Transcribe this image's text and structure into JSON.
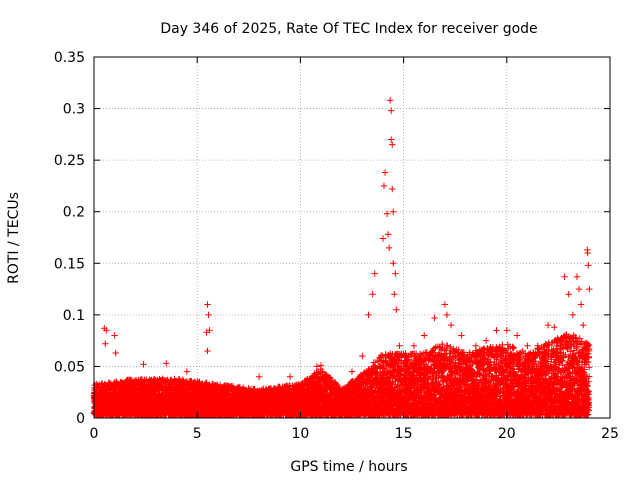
{
  "chart_data": {
    "type": "scatter",
    "title": "Day 346 of 2025, Rate Of TEC Index for receiver gode",
    "xlabel": "GPS time / hours",
    "ylabel": "ROTI / TECUs",
    "xlim": [
      0,
      25
    ],
    "ylim": [
      0,
      0.35
    ],
    "xticks": [
      0,
      5,
      10,
      15,
      20,
      25
    ],
    "xtick_labels": [
      "0",
      "5",
      "10",
      "15",
      "20",
      "25"
    ],
    "yticks": [
      0,
      0.05,
      0.1,
      0.15,
      0.2,
      0.25,
      0.3,
      0.35
    ],
    "ytick_labels": [
      "0",
      "0.05",
      "0.1",
      "0.15",
      "0.2",
      "0.25",
      "0.3",
      "0.35"
    ],
    "grid": true,
    "marker": "+",
    "series": [
      {
        "name": "ROTI",
        "color": "#ff0000",
        "baseline_profile": {
          "hours": [
            0,
            2,
            4,
            6,
            8,
            10,
            11,
            12,
            13,
            14,
            15,
            16,
            17,
            18,
            19,
            20,
            21,
            22,
            23,
            24
          ],
          "max_typical": [
            0.03,
            0.035,
            0.035,
            0.03,
            0.025,
            0.03,
            0.045,
            0.025,
            0.04,
            0.06,
            0.06,
            0.06,
            0.07,
            0.06,
            0.065,
            0.07,
            0.06,
            0.07,
            0.08,
            0.07
          ]
        },
        "peaks": [
          {
            "x": 0.5,
            "y": 0.087
          },
          {
            "x": 0.6,
            "y": 0.085
          },
          {
            "x": 0.55,
            "y": 0.072
          },
          {
            "x": 1.0,
            "y": 0.08
          },
          {
            "x": 1.05,
            "y": 0.063
          },
          {
            "x": 2.4,
            "y": 0.052
          },
          {
            "x": 3.5,
            "y": 0.053
          },
          {
            "x": 4.5,
            "y": 0.045
          },
          {
            "x": 5.5,
            "y": 0.11
          },
          {
            "x": 5.55,
            "y": 0.1
          },
          {
            "x": 5.6,
            "y": 0.085
          },
          {
            "x": 5.45,
            "y": 0.083
          },
          {
            "x": 5.5,
            "y": 0.065
          },
          {
            "x": 8.0,
            "y": 0.04
          },
          {
            "x": 9.5,
            "y": 0.04
          },
          {
            "x": 10.8,
            "y": 0.05
          },
          {
            "x": 11.0,
            "y": 0.051
          },
          {
            "x": 12.5,
            "y": 0.045
          },
          {
            "x": 13.0,
            "y": 0.06
          },
          {
            "x": 13.3,
            "y": 0.1
          },
          {
            "x": 13.5,
            "y": 0.12
          },
          {
            "x": 13.6,
            "y": 0.14
          },
          {
            "x": 14.0,
            "y": 0.174
          },
          {
            "x": 14.05,
            "y": 0.225
          },
          {
            "x": 14.1,
            "y": 0.238
          },
          {
            "x": 14.2,
            "y": 0.198
          },
          {
            "x": 14.25,
            "y": 0.178
          },
          {
            "x": 14.3,
            "y": 0.165
          },
          {
            "x": 14.35,
            "y": 0.308
          },
          {
            "x": 14.4,
            "y": 0.298
          },
          {
            "x": 14.4,
            "y": 0.27
          },
          {
            "x": 14.45,
            "y": 0.265
          },
          {
            "x": 14.45,
            "y": 0.222
          },
          {
            "x": 14.5,
            "y": 0.2
          },
          {
            "x": 14.5,
            "y": 0.15
          },
          {
            "x": 14.55,
            "y": 0.12
          },
          {
            "x": 14.6,
            "y": 0.14
          },
          {
            "x": 14.65,
            "y": 0.105
          },
          {
            "x": 14.8,
            "y": 0.07
          },
          {
            "x": 15.5,
            "y": 0.07
          },
          {
            "x": 16.0,
            "y": 0.08
          },
          {
            "x": 16.5,
            "y": 0.097
          },
          {
            "x": 17.0,
            "y": 0.11
          },
          {
            "x": 17.1,
            "y": 0.1
          },
          {
            "x": 17.3,
            "y": 0.09
          },
          {
            "x": 17.8,
            "y": 0.08
          },
          {
            "x": 18.5,
            "y": 0.07
          },
          {
            "x": 19.0,
            "y": 0.075
          },
          {
            "x": 19.5,
            "y": 0.085
          },
          {
            "x": 20.0,
            "y": 0.085
          },
          {
            "x": 20.5,
            "y": 0.08
          },
          {
            "x": 21.0,
            "y": 0.07
          },
          {
            "x": 21.5,
            "y": 0.07
          },
          {
            "x": 22.0,
            "y": 0.09
          },
          {
            "x": 22.3,
            "y": 0.088
          },
          {
            "x": 22.8,
            "y": 0.137
          },
          {
            "x": 23.0,
            "y": 0.12
          },
          {
            "x": 23.2,
            "y": 0.1
          },
          {
            "x": 23.4,
            "y": 0.137
          },
          {
            "x": 23.5,
            "y": 0.125
          },
          {
            "x": 23.6,
            "y": 0.11
          },
          {
            "x": 23.7,
            "y": 0.09
          },
          {
            "x": 23.9,
            "y": 0.163
          },
          {
            "x": 23.92,
            "y": 0.16
          },
          {
            "x": 23.95,
            "y": 0.148
          },
          {
            "x": 24.0,
            "y": 0.125
          }
        ]
      }
    ]
  }
}
